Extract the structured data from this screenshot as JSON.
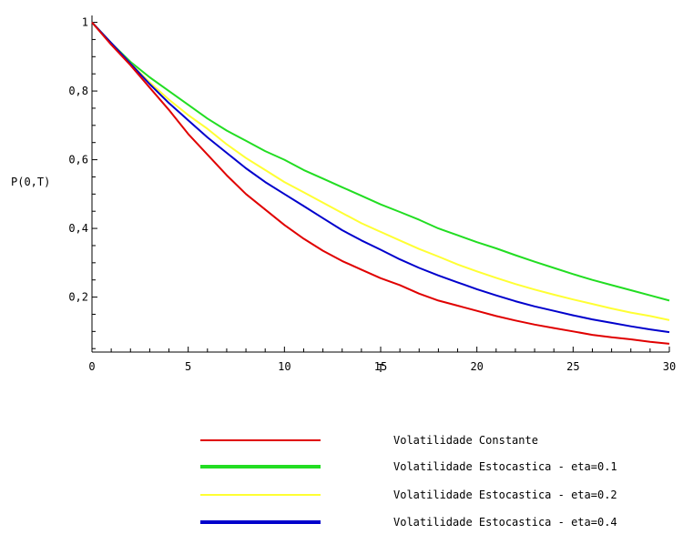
{
  "chart_data": {
    "type": "line",
    "title": "",
    "xlabel": "T",
    "ylabel": "P(0,T)",
    "xlim": [
      0,
      30
    ],
    "ylim": [
      0.04,
      1.02
    ],
    "x_ticks": [
      {
        "value": 0,
        "label": "0"
      },
      {
        "value": 5,
        "label": "5"
      },
      {
        "value": 10,
        "label": "10"
      },
      {
        "value": 15,
        "label": "15"
      },
      {
        "value": 20,
        "label": "20"
      },
      {
        "value": 25,
        "label": "25"
      },
      {
        "value": 30,
        "label": "30"
      }
    ],
    "y_ticks": [
      {
        "value": 0.2,
        "label": "0,2"
      },
      {
        "value": 0.4,
        "label": "0,4"
      },
      {
        "value": 0.6,
        "label": "0,6"
      },
      {
        "value": 0.8,
        "label": "0,8"
      },
      {
        "value": 1.0,
        "label": "1"
      }
    ],
    "grid": false,
    "legend_position": "bottom",
    "x": [
      0,
      1,
      2,
      3,
      4,
      5,
      6,
      7,
      8,
      9,
      10,
      11,
      12,
      13,
      14,
      15,
      16,
      17,
      18,
      19,
      20,
      21,
      22,
      23,
      24,
      25,
      26,
      27,
      28,
      29,
      30
    ],
    "series": [
      {
        "name": "Volatilidade Constante",
        "color": "#e00000",
        "values": [
          1.0,
          0.935,
          0.875,
          0.81,
          0.745,
          0.675,
          0.615,
          0.555,
          0.5,
          0.455,
          0.41,
          0.37,
          0.335,
          0.305,
          0.28,
          0.255,
          0.235,
          0.21,
          0.19,
          0.175,
          0.16,
          0.145,
          0.132,
          0.12,
          0.11,
          0.1,
          0.09,
          0.083,
          0.077,
          0.07,
          0.064
        ]
      },
      {
        "name": "Volatilidade Estocastica - eta=0.1",
        "color": "#22dd22",
        "values": [
          1.0,
          0.94,
          0.885,
          0.84,
          0.8,
          0.76,
          0.72,
          0.685,
          0.655,
          0.625,
          0.6,
          0.57,
          0.545,
          0.52,
          0.495,
          0.47,
          0.448,
          0.425,
          0.4,
          0.38,
          0.36,
          0.342,
          0.322,
          0.303,
          0.285,
          0.267,
          0.25,
          0.235,
          0.22,
          0.205,
          0.19
        ]
      },
      {
        "name": "Volatilidade Estocastica - eta=0.2",
        "color": "#ffff33",
        "values": [
          1.0,
          0.94,
          0.88,
          0.825,
          0.775,
          0.73,
          0.69,
          0.645,
          0.605,
          0.57,
          0.535,
          0.505,
          0.475,
          0.445,
          0.415,
          0.39,
          0.365,
          0.34,
          0.318,
          0.295,
          0.275,
          0.256,
          0.238,
          0.222,
          0.207,
          0.193,
          0.18,
          0.167,
          0.155,
          0.145,
          0.133
        ]
      },
      {
        "name": "Volatilidade Estocastica - eta=0.4",
        "color": "#0000cc",
        "values": [
          1.0,
          0.94,
          0.88,
          0.82,
          0.765,
          0.715,
          0.665,
          0.62,
          0.575,
          0.535,
          0.5,
          0.465,
          0.43,
          0.395,
          0.365,
          0.338,
          0.31,
          0.285,
          0.263,
          0.243,
          0.223,
          0.205,
          0.188,
          0.173,
          0.16,
          0.147,
          0.135,
          0.125,
          0.115,
          0.106,
          0.098
        ]
      }
    ]
  }
}
